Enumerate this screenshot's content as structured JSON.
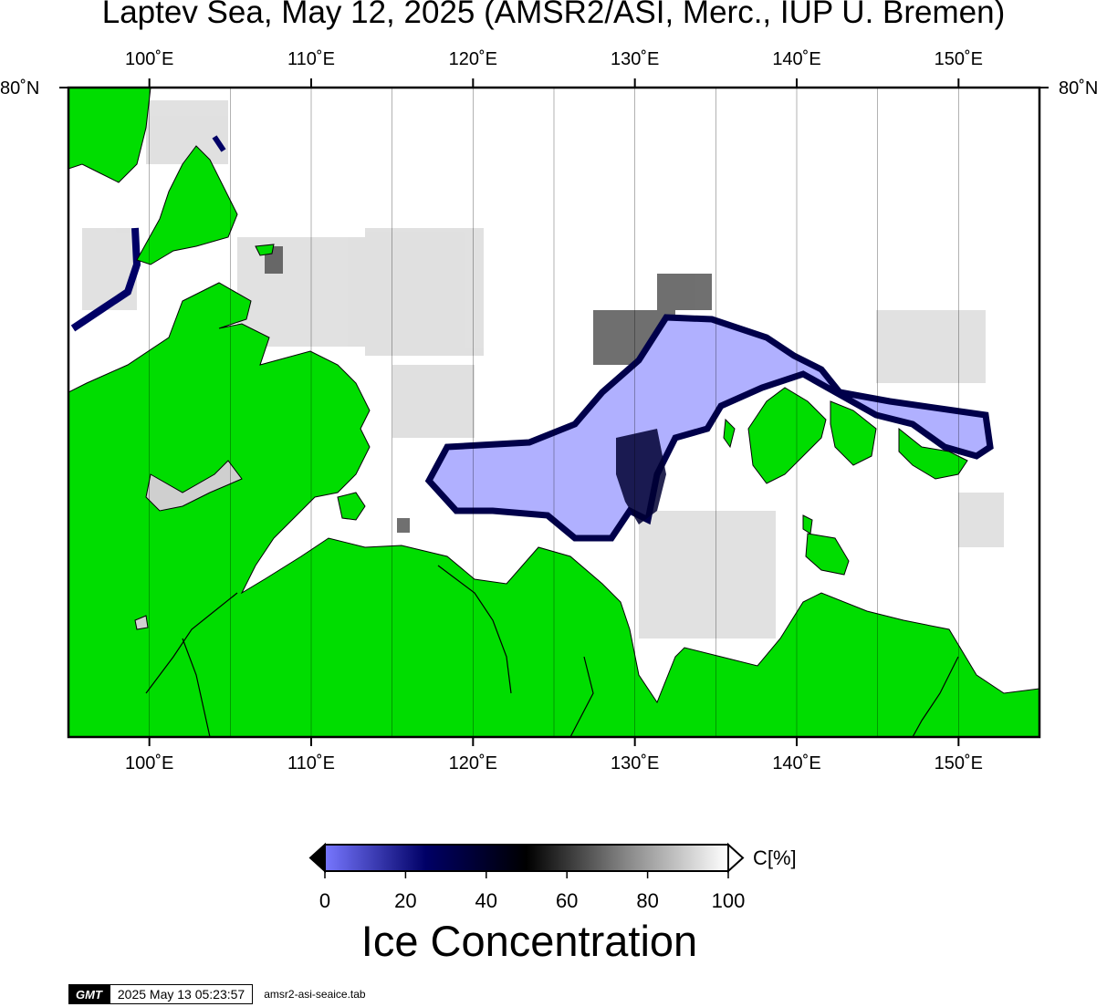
{
  "header": {
    "title": "Laptev Sea, May 12, 2025 (AMSR2/ASI, Merc., IUP U. Bremen)"
  },
  "map": {
    "lon_ticks": [
      "100˚E",
      "110˚E",
      "120˚E",
      "130˚E",
      "140˚E",
      "150˚E"
    ],
    "lat_label": "80˚N",
    "lon_range_deg": [
      95,
      155
    ],
    "colors": {
      "land": "#00dd00",
      "open_water": "#ffffff",
      "fast_ice": "#b0b0ff",
      "border": "#000000"
    }
  },
  "colorbar": {
    "ticks": [
      "0",
      "20",
      "40",
      "60",
      "80",
      "100"
    ],
    "unit": "C[%]",
    "title": "Ice Concentration",
    "stops": [
      "#7777ff",
      "#000066",
      "#000000",
      "#888888",
      "#ffffff"
    ]
  },
  "footer": {
    "logo": "GMT",
    "timestamp": "2025 May 13 05:23:57",
    "command": "amsr2-asi-seaice.tab"
  }
}
